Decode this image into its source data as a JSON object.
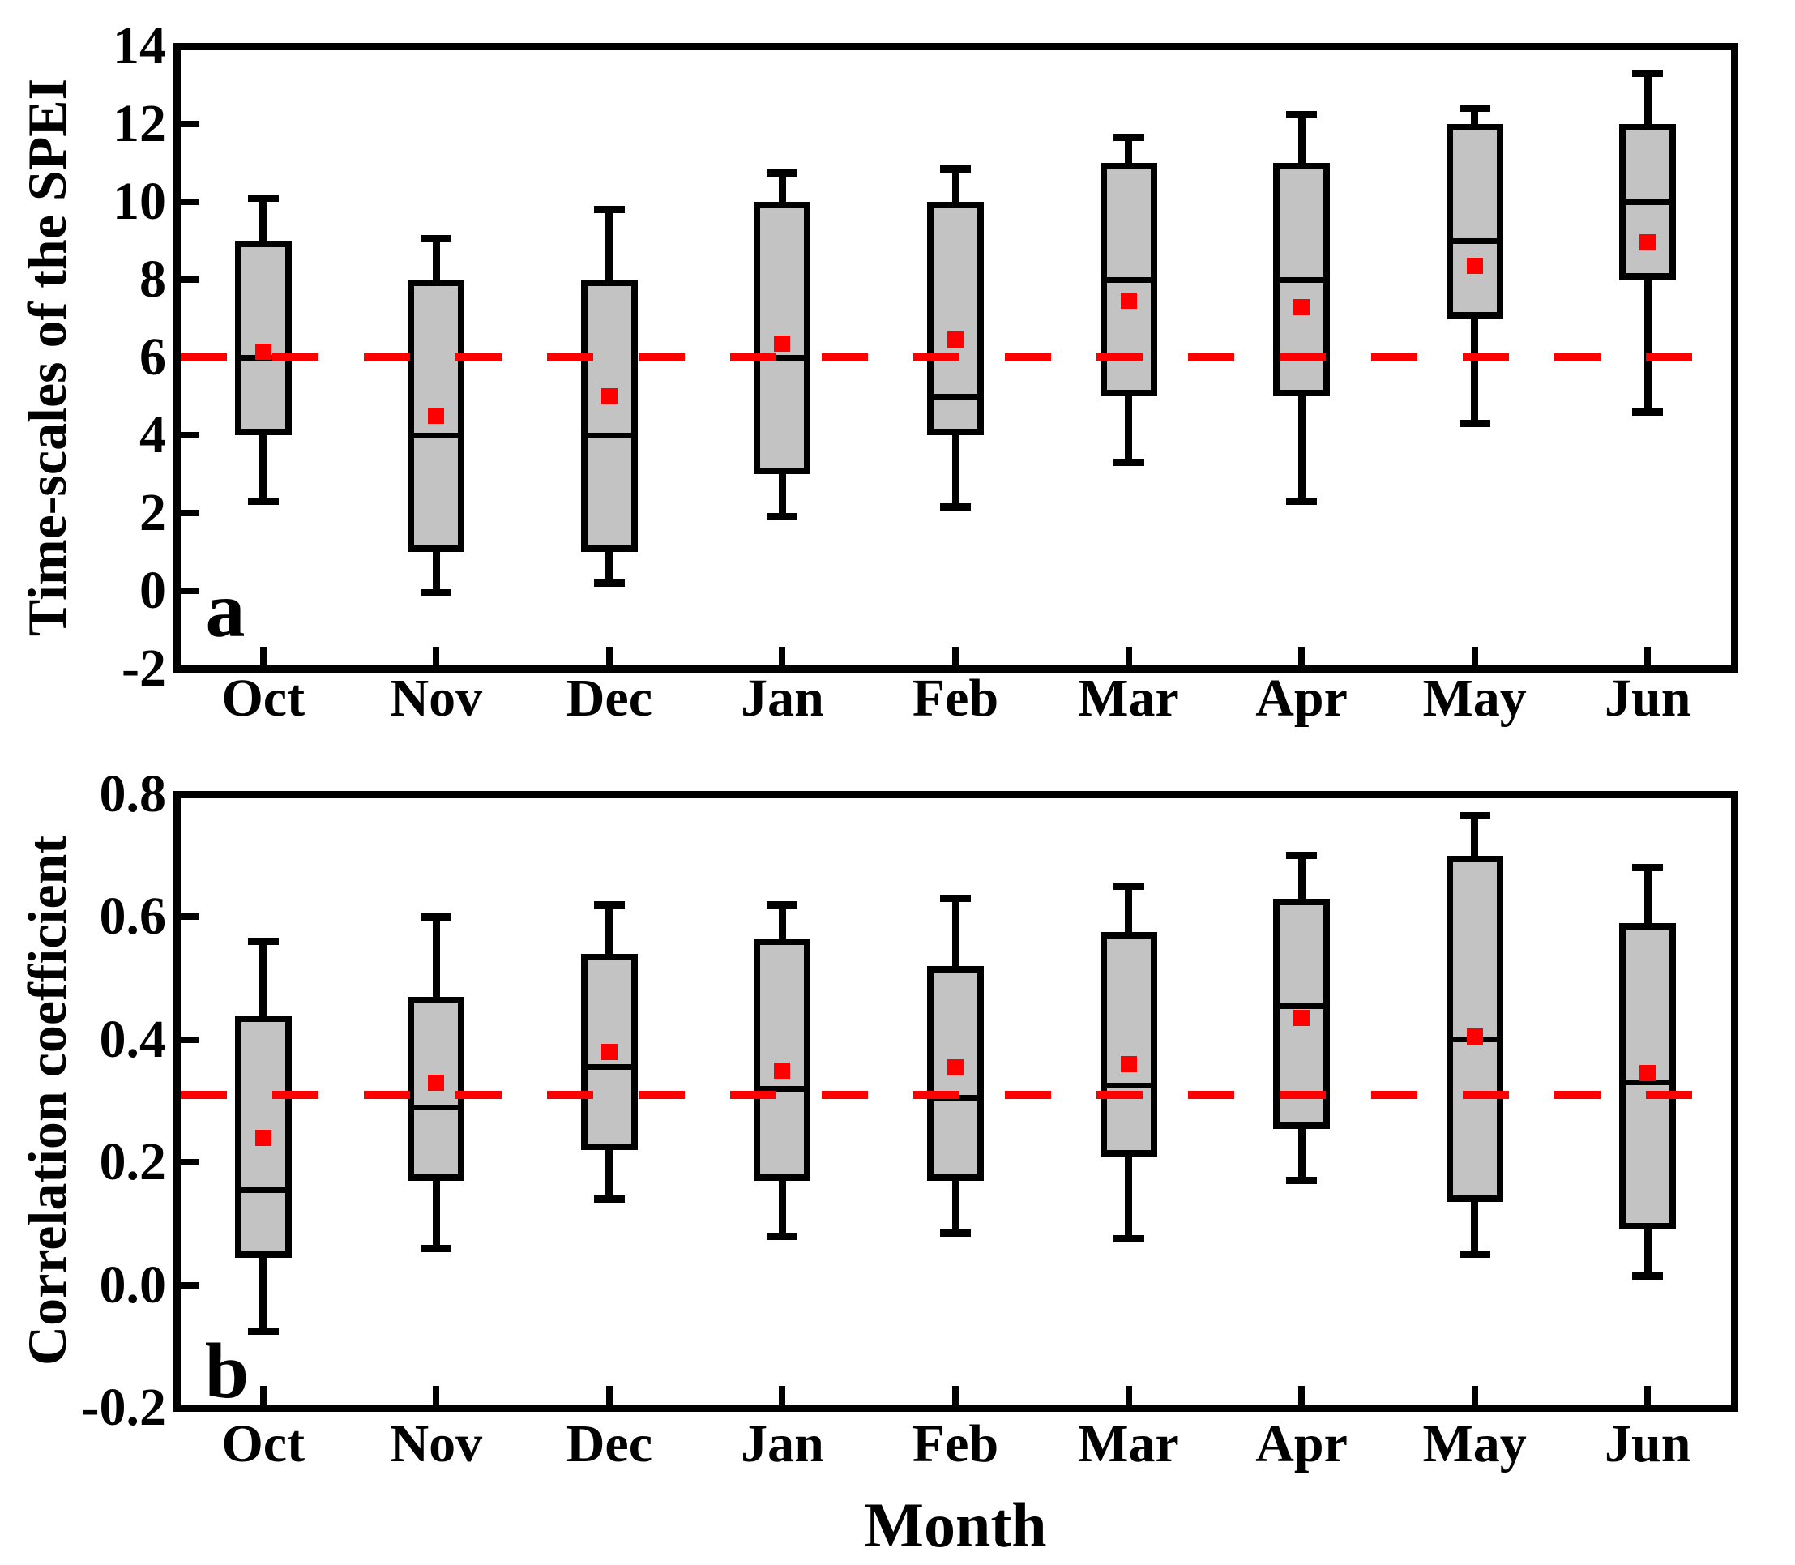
{
  "figure": {
    "x_title": "Month",
    "months": [
      "Oct",
      "Nov",
      "Dec",
      "Jan",
      "Feb",
      "Mar",
      "Apr",
      "May",
      "Jun"
    ],
    "colors": {
      "background": "#FFFFFF",
      "box_fill": "#C3C3C3",
      "box_border": "#000000",
      "mean_marker": "#FF0000",
      "reference_line": "#FF0000"
    }
  },
  "chart_data": [
    {
      "type": "box",
      "panel_label": "a",
      "title": "",
      "xlabel": "Month",
      "ylabel": "Time-scales of the SPEI",
      "ylim": [
        -2,
        14
      ],
      "yticks": [
        14,
        12,
        10,
        8,
        6,
        4,
        2,
        0,
        -2
      ],
      "ytick_labels": [
        "14",
        "12",
        "10",
        "8",
        "6",
        "4",
        "2",
        "0",
        "-2"
      ],
      "grid": false,
      "legend": "none",
      "reference_line": {
        "value": 6,
        "style": "dashed",
        "color": "#FF0000"
      },
      "categories": [
        "Oct",
        "Nov",
        "Dec",
        "Jan",
        "Feb",
        "Mar",
        "Apr",
        "May",
        "Jun"
      ],
      "series": [
        {
          "month": "Oct",
          "whisker_low": 2.3,
          "q1": 4,
          "median": 6,
          "q3": 9,
          "whisker_high": 10.1,
          "mean": 6.15
        },
        {
          "month": "Nov",
          "whisker_low": -0.05,
          "q1": 1,
          "median": 4,
          "q3": 8,
          "whisker_high": 9.05,
          "mean": 4.5
        },
        {
          "month": "Dec",
          "whisker_low": 0.2,
          "q1": 1,
          "median": 4,
          "q3": 8,
          "whisker_high": 9.8,
          "mean": 5.0
        },
        {
          "month": "Jan",
          "whisker_low": 1.9,
          "q1": 3,
          "median": 6,
          "q3": 10,
          "whisker_high": 10.75,
          "mean": 6.35
        },
        {
          "month": "Feb",
          "whisker_low": 2.15,
          "q1": 4,
          "median": 5,
          "q3": 10,
          "whisker_high": 10.85,
          "mean": 6.45
        },
        {
          "month": "Mar",
          "whisker_low": 3.3,
          "q1": 5,
          "median": 8,
          "q3": 11,
          "whisker_high": 11.65,
          "mean": 7.45
        },
        {
          "month": "Apr",
          "whisker_low": 2.3,
          "q1": 5,
          "median": 8,
          "q3": 11,
          "whisker_high": 12.25,
          "mean": 7.3
        },
        {
          "month": "May",
          "whisker_low": 4.3,
          "q1": 7,
          "median": 9,
          "q3": 12,
          "whisker_high": 12.4,
          "mean": 8.35
        },
        {
          "month": "Jun",
          "whisker_low": 4.6,
          "q1": 8,
          "median": 10,
          "q3": 12,
          "whisker_high": 13.3,
          "mean": 8.95
        }
      ]
    },
    {
      "type": "box",
      "panel_label": "b",
      "title": "",
      "xlabel": "Month",
      "ylabel": "Correlation coefficient",
      "ylim": [
        -0.2,
        0.8
      ],
      "yticks": [
        0.8,
        0.6,
        0.4,
        0.2,
        0.0,
        -0.2
      ],
      "ytick_labels": [
        "0.8",
        "0.6",
        "0.4",
        "0.2",
        "0.0",
        "-0.2"
      ],
      "grid": false,
      "legend": "none",
      "reference_line": {
        "value": 0.31,
        "style": "dashed",
        "color": "#FF0000"
      },
      "categories": [
        "Oct",
        "Nov",
        "Dec",
        "Jan",
        "Feb",
        "Mar",
        "Apr",
        "May",
        "Jun"
      ],
      "series": [
        {
          "month": "Oct",
          "whisker_low": -0.075,
          "q1": 0.045,
          "median": 0.155,
          "q3": 0.44,
          "whisker_high": 0.56,
          "mean": 0.24
        },
        {
          "month": "Nov",
          "whisker_low": 0.06,
          "q1": 0.17,
          "median": 0.29,
          "q3": 0.47,
          "whisker_high": 0.6,
          "mean": 0.33
        },
        {
          "month": "Dec",
          "whisker_low": 0.14,
          "q1": 0.22,
          "median": 0.355,
          "q3": 0.54,
          "whisker_high": 0.62,
          "mean": 0.38
        },
        {
          "month": "Jan",
          "whisker_low": 0.08,
          "q1": 0.17,
          "median": 0.32,
          "q3": 0.565,
          "whisker_high": 0.62,
          "mean": 0.35
        },
        {
          "month": "Feb",
          "whisker_low": 0.085,
          "q1": 0.17,
          "median": 0.305,
          "q3": 0.52,
          "whisker_high": 0.63,
          "mean": 0.355
        },
        {
          "month": "Mar",
          "whisker_low": 0.075,
          "q1": 0.21,
          "median": 0.325,
          "q3": 0.575,
          "whisker_high": 0.65,
          "mean": 0.36
        },
        {
          "month": "Apr",
          "whisker_low": 0.17,
          "q1": 0.255,
          "median": 0.455,
          "q3": 0.63,
          "whisker_high": 0.7,
          "mean": 0.435
        },
        {
          "month": "May",
          "whisker_low": 0.05,
          "q1": 0.135,
          "median": 0.4,
          "q3": 0.7,
          "whisker_high": 0.765,
          "mean": 0.405
        },
        {
          "month": "Jun",
          "whisker_low": 0.015,
          "q1": 0.09,
          "median": 0.33,
          "q3": 0.59,
          "whisker_high": 0.68,
          "mean": 0.345
        }
      ]
    }
  ]
}
